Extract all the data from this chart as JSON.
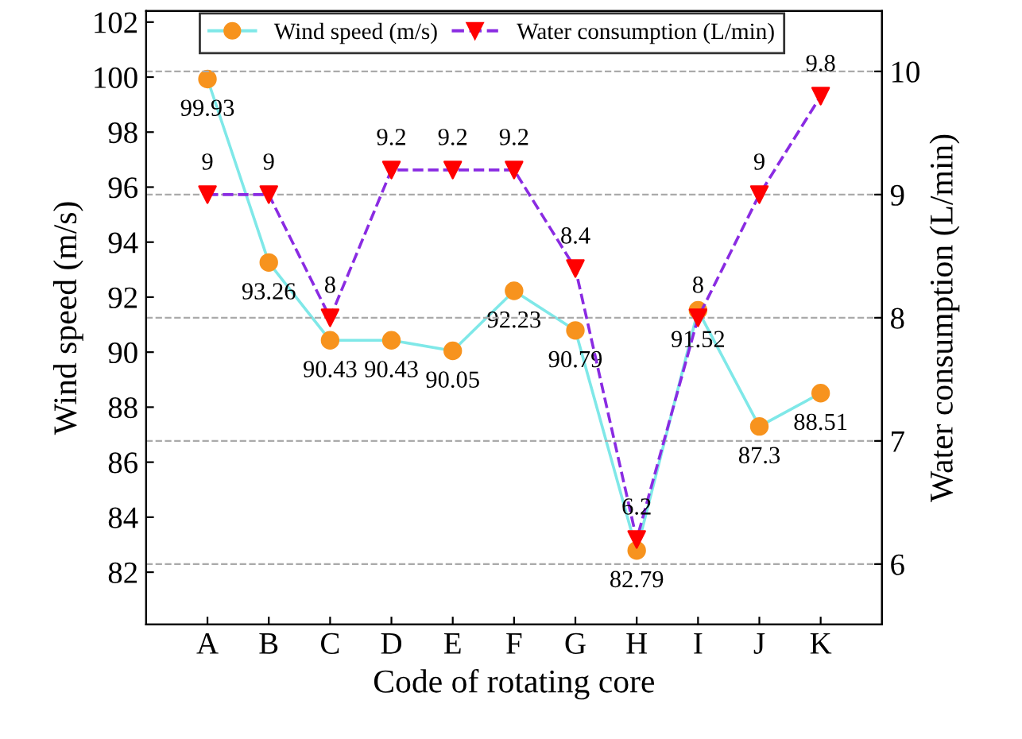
{
  "chart_data": {
    "type": "line",
    "xlabel": "Code of rotating core",
    "ylabel": "Wind speed (m/s)",
    "y2label": "Water consumption (L/min)",
    "categories": [
      "A",
      "B",
      "C",
      "D",
      "E",
      "F",
      "G",
      "H",
      "I",
      "J",
      "K"
    ],
    "series": [
      {
        "name": "Wind speed (m/s)",
        "color": "#7fe8e8",
        "colors": [
          "#f7931e",
          "#f7931e",
          "#f7931e",
          "#f7931e",
          "#f7931e",
          "#f7931e",
          "#f7931e",
          "#f7931e",
          "#f7931e",
          "#f7931e",
          "#f7931e"
        ],
        "marker": "circle",
        "line_style": "solid",
        "values": [
          99.93,
          93.26,
          90.43,
          90.43,
          90.05,
          92.23,
          90.79,
          82.79,
          91.52,
          87.3,
          88.51
        ]
      },
      {
        "name": "Water consumption (L/min)",
        "color": "#8a2be2",
        "colors": [
          "#ff0000",
          "#ff0000",
          "#ff0000",
          "#ff0000",
          "#ff0000",
          "#ff0000",
          "#ff0000",
          "#ff0000",
          "#ff0000",
          "#ff0000",
          "#ff0000"
        ],
        "marker": "triangle",
        "line_style": "dashed",
        "axis": "y2",
        "values": [
          9,
          9,
          8,
          9.2,
          9.2,
          9.2,
          8.4,
          6.2,
          8,
          9,
          9.8
        ]
      }
    ],
    "ylim": [
      80.1,
      102.4
    ],
    "yticks": [
      82,
      84,
      86,
      88,
      90,
      92,
      94,
      96,
      98,
      100,
      102
    ],
    "y2lim": [
      5.51,
      10.49
    ],
    "y2ticks": [
      6,
      7,
      8,
      9,
      10
    ],
    "data_labels": true,
    "grid": "y2",
    "legend": "top"
  }
}
